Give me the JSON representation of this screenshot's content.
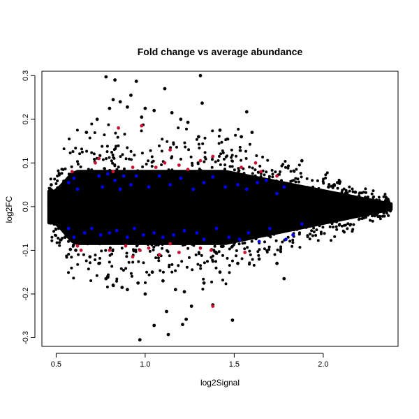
{
  "chart_data": {
    "type": "scatter",
    "title": "Fold change vs average abundance",
    "xlabel": "log2Signal",
    "ylabel": "log2FC",
    "xlim": [
      0.42,
      2.42
    ],
    "ylim": [
      -0.32,
      0.31
    ],
    "xticks": [
      0.5,
      1.0,
      1.5,
      2.0
    ],
    "xtick_labels": [
      "0.5",
      "1.0",
      "1.5",
      "2.0"
    ],
    "yticks": [
      -0.3,
      -0.2,
      -0.1,
      0.0,
      0.1,
      0.2,
      0.3
    ],
    "ytick_labels": [
      "-0.3",
      "-0.2",
      "-0.1",
      "0.0",
      "0.1",
      "0.2",
      "0.3"
    ],
    "grid": false,
    "legend": "none",
    "colors": {
      "background": "#000000",
      "highlight_blue": "#0000ff",
      "highlight_red": "#cc1133"
    },
    "series": [
      {
        "color": "#000000",
        "points": [
          [
            0.78,
            0.297
          ],
          [
            0.83,
            0.29
          ],
          [
            0.95,
            0.287
          ],
          [
            1.31,
            0.3
          ],
          [
            0.92,
            0.255
          ],
          [
            1.11,
            0.27
          ],
          [
            0.82,
            0.245
          ],
          [
            0.86,
            0.24
          ],
          [
            0.8,
            0.225
          ],
          [
            0.9,
            0.228
          ],
          [
            1.0,
            0.225
          ],
          [
            1.05,
            0.22
          ],
          [
            1.2,
            0.2
          ],
          [
            1.24,
            0.193
          ],
          [
            1.32,
            0.237
          ],
          [
            1.57,
            0.217
          ],
          [
            0.73,
            0.2
          ],
          [
            0.67,
            0.17
          ],
          [
            0.98,
            0.205
          ],
          [
            1.15,
            0.215
          ],
          [
            1.42,
            0.175
          ],
          [
            1.6,
            0.17
          ],
          [
            1.3,
            0.16
          ],
          [
            1.54,
            0.16
          ],
          [
            1.88,
            0.105
          ],
          [
            2.08,
            0.055
          ],
          [
            2.03,
            0.045
          ],
          [
            2.18,
            0.033
          ],
          [
            2.26,
            0.015
          ],
          [
            2.33,
            0.005
          ],
          [
            2.37,
            -0.002
          ],
          [
            0.46,
            0.01
          ],
          [
            0.47,
            -0.005
          ],
          [
            0.49,
            0.03
          ],
          [
            0.49,
            -0.04
          ],
          [
            0.55,
            -0.07
          ],
          [
            0.58,
            -0.098
          ],
          [
            0.74,
            -0.13
          ],
          [
            0.79,
            -0.16
          ],
          [
            0.82,
            -0.18
          ],
          [
            0.87,
            -0.185
          ],
          [
            0.9,
            -0.19
          ],
          [
            0.78,
            -0.165
          ],
          [
            0.96,
            -0.175
          ],
          [
            1.0,
            -0.2
          ],
          [
            1.1,
            -0.17
          ],
          [
            1.17,
            -0.19
          ],
          [
            1.22,
            -0.195
          ],
          [
            1.33,
            -0.175
          ],
          [
            1.12,
            -0.24
          ],
          [
            1.23,
            -0.258
          ],
          [
            1.38,
            -0.225
          ],
          [
            1.26,
            -0.228
          ],
          [
            1.49,
            -0.26
          ],
          [
            0.97,
            -0.305
          ],
          [
            1.05,
            -0.272
          ],
          [
            1.13,
            -0.293
          ],
          [
            1.21,
            -0.27
          ],
          [
            1.78,
            -0.165
          ],
          [
            1.74,
            -0.13
          ],
          [
            1.52,
            -0.13
          ],
          [
            1.64,
            -0.12
          ],
          [
            1.42,
            -0.15
          ],
          [
            1.04,
            -0.15
          ],
          [
            0.69,
            -0.115
          ],
          [
            0.61,
            -0.1
          ]
        ]
      },
      {
        "color": "#0000ff",
        "points": [
          [
            0.57,
            0.055
          ],
          [
            0.6,
            0.065
          ],
          [
            0.62,
            0.04
          ],
          [
            0.74,
            0.07
          ],
          [
            0.76,
            0.045
          ],
          [
            0.79,
            0.075
          ],
          [
            0.83,
            0.06
          ],
          [
            0.86,
            0.04
          ],
          [
            0.88,
            0.07
          ],
          [
            0.92,
            0.05
          ],
          [
            0.95,
            0.07
          ],
          [
            1.02,
            0.045
          ],
          [
            1.08,
            0.07
          ],
          [
            1.14,
            0.05
          ],
          [
            1.2,
            0.065
          ],
          [
            1.27,
            0.04
          ],
          [
            1.33,
            0.055
          ],
          [
            1.38,
            0.068
          ],
          [
            1.45,
            0.045
          ],
          [
            1.52,
            0.05
          ],
          [
            1.57,
            0.04
          ],
          [
            1.63,
            0.055
          ],
          [
            1.68,
            0.06
          ],
          [
            1.74,
            0.03
          ],
          [
            1.78,
            0.045
          ],
          [
            0.57,
            -0.05
          ],
          [
            0.6,
            -0.07
          ],
          [
            0.66,
            -0.06
          ],
          [
            0.7,
            -0.05
          ],
          [
            0.75,
            -0.065
          ],
          [
            0.8,
            -0.06
          ],
          [
            0.84,
            -0.055
          ],
          [
            0.9,
            -0.07
          ],
          [
            0.94,
            -0.05
          ],
          [
            0.99,
            -0.065
          ],
          [
            1.05,
            -0.06
          ],
          [
            1.1,
            -0.07
          ],
          [
            1.16,
            -0.065
          ],
          [
            1.22,
            -0.055
          ],
          [
            1.29,
            -0.06
          ],
          [
            1.33,
            -0.075
          ],
          [
            1.4,
            -0.05
          ],
          [
            1.47,
            -0.07
          ],
          [
            1.53,
            -0.075
          ],
          [
            1.58,
            -0.06
          ],
          [
            1.64,
            -0.08
          ],
          [
            1.7,
            -0.05
          ],
          [
            1.79,
            -0.075
          ],
          [
            1.83,
            -0.065
          ],
          [
            1.88,
            -0.04
          ]
        ]
      },
      {
        "color": "#cc1133",
        "points": [
          [
            0.59,
            0.08
          ],
          [
            0.72,
            0.1
          ],
          [
            0.74,
            0.11
          ],
          [
            0.82,
            0.08
          ],
          [
            0.85,
            0.18
          ],
          [
            0.93,
            0.09
          ],
          [
            0.98,
            0.185
          ],
          [
            1.06,
            0.09
          ],
          [
            1.11,
            0.1
          ],
          [
            1.14,
            0.13
          ],
          [
            1.19,
            0.095
          ],
          [
            1.24,
            0.085
          ],
          [
            1.31,
            0.105
          ],
          [
            1.38,
            0.115
          ],
          [
            1.54,
            0.09
          ],
          [
            1.62,
            0.1
          ],
          [
            1.65,
            0.08
          ],
          [
            1.74,
            0.07
          ],
          [
            0.62,
            -0.09
          ],
          [
            0.64,
            -0.1
          ],
          [
            0.8,
            -0.1
          ],
          [
            0.89,
            -0.09
          ],
          [
            0.93,
            -0.115
          ],
          [
            0.97,
            -0.1
          ],
          [
            1.02,
            -0.095
          ],
          [
            1.08,
            -0.11
          ],
          [
            1.14,
            -0.085
          ],
          [
            1.19,
            -0.105
          ],
          [
            1.31,
            -0.095
          ],
          [
            1.37,
            -0.1
          ],
          [
            1.38,
            -0.228
          ],
          [
            1.56,
            -0.105
          ]
        ]
      }
    ]
  }
}
